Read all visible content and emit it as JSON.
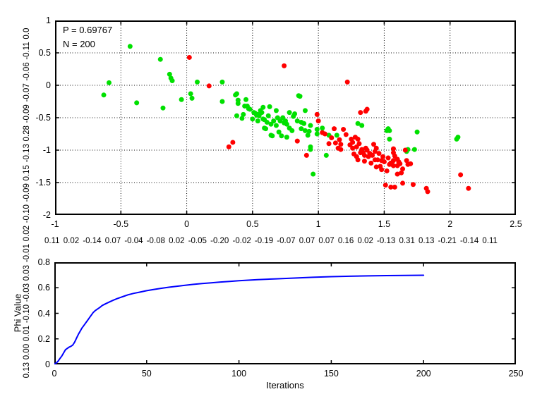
{
  "figure": {
    "background": "#ffffff",
    "left_number_strip": "0.13 0.00 0.01 -0.10 -0.03 0.03 -0.01 0.02 -0.10 -0.09 0.15 -0.13 0.28 -0.09 -0.07 -0.06 -0.11 0.0",
    "bottom_number_strip": "0.11 0.02 -0.14 0.07 -0.04 -0.08 0.02 -0.05 -0.20 -0.02 -0.19 -0.07 0.07 0.07 0.16 0.02 -0.13 0.31 0.13 -0.21 -0.14 0.11"
  },
  "chart_data": [
    {
      "type": "scatter",
      "annotation": [
        "P = 0.69767",
        "N = 200"
      ],
      "xlim": [
        -1,
        2.5
      ],
      "ylim": [
        -2,
        1
      ],
      "xticks": [
        -1,
        -0.5,
        0,
        0.5,
        1,
        1.5,
        2,
        2.5
      ],
      "yticks": [
        1,
        0.5,
        0,
        -0.5,
        -1,
        -1.5,
        -2
      ],
      "grid": true,
      "legend_position": "none",
      "series": [
        {
          "name": "green-class",
          "color": "#00e000",
          "points": [
            [
              -0.43,
              0.6
            ],
            [
              -0.2,
              0.4
            ],
            [
              -0.59,
              0.04
            ],
            [
              -0.63,
              -0.15
            ],
            [
              -0.13,
              0.17
            ],
            [
              -0.12,
              0.11
            ],
            [
              -0.11,
              0.07
            ],
            [
              0.08,
              0.05
            ],
            [
              0.27,
              0.05
            ],
            [
              -0.38,
              -0.27
            ],
            [
              -0.18,
              -0.35
            ],
            [
              -0.04,
              -0.22
            ],
            [
              0.03,
              -0.13
            ],
            [
              0.04,
              -0.2
            ],
            [
              0.38,
              -0.13
            ],
            [
              0.27,
              -0.25
            ],
            [
              0.39,
              -0.23
            ],
            [
              0.85,
              -0.16
            ],
            [
              0.86,
              -0.17
            ],
            [
              0.37,
              -0.15
            ],
            [
              0.39,
              -0.28
            ],
            [
              0.45,
              -0.22
            ],
            [
              0.44,
              -0.32
            ],
            [
              0.38,
              -0.47
            ],
            [
              0.42,
              -0.51
            ],
            [
              0.47,
              -0.36
            ],
            [
              0.51,
              -0.42
            ],
            [
              0.54,
              -0.45
            ],
            [
              0.58,
              -0.34
            ],
            [
              0.57,
              -0.42
            ],
            [
              0.63,
              -0.33
            ],
            [
              0.62,
              -0.47
            ],
            [
              0.59,
              -0.53
            ],
            [
              0.68,
              -0.39
            ],
            [
              0.69,
              -0.5
            ],
            [
              0.66,
              -0.55
            ],
            [
              0.73,
              -0.5
            ],
            [
              0.75,
              -0.55
            ],
            [
              0.78,
              -0.42
            ],
            [
              0.81,
              -0.48
            ],
            [
              0.84,
              -0.55
            ],
            [
              0.9,
              -0.39
            ],
            [
              0.89,
              -0.59
            ],
            [
              0.94,
              -0.62
            ],
            [
              0.46,
              -0.32
            ],
            [
              0.48,
              -0.37
            ],
            [
              0.43,
              -0.45
            ],
            [
              0.53,
              -0.46
            ],
            [
              0.56,
              -0.39
            ],
            [
              0.52,
              -0.43
            ],
            [
              0.55,
              -0.47
            ],
            [
              0.5,
              -0.52
            ],
            [
              0.54,
              -0.55
            ],
            [
              0.61,
              -0.57
            ],
            [
              0.58,
              -0.52
            ],
            [
              0.64,
              -0.6
            ],
            [
              0.68,
              -0.62
            ],
            [
              0.71,
              -0.55
            ],
            [
              0.74,
              -0.58
            ],
            [
              0.76,
              -0.6
            ],
            [
              0.82,
              -0.44
            ],
            [
              0.87,
              -0.57
            ],
            [
              0.6,
              -0.67
            ],
            [
              0.65,
              -0.78
            ],
            [
              0.7,
              -0.72
            ],
            [
              0.76,
              -0.8
            ],
            [
              0.8,
              -0.7
            ],
            [
              0.87,
              -0.67
            ],
            [
              0.93,
              -0.71
            ],
            [
              0.99,
              -0.68
            ],
            [
              1.03,
              -0.66
            ],
            [
              0.78,
              -0.66
            ],
            [
              0.72,
              -0.78
            ],
            [
              0.64,
              -0.77
            ],
            [
              0.59,
              -0.66
            ],
            [
              0.9,
              -0.7
            ],
            [
              0.99,
              -0.75
            ],
            [
              0.92,
              -0.77
            ],
            [
              0.94,
              -0.99
            ],
            [
              0.94,
              -0.95
            ],
            [
              1.06,
              -1.08
            ],
            [
              0.96,
              -1.37
            ],
            [
              1.08,
              -0.77
            ],
            [
              1.14,
              -0.77
            ],
            [
              1.3,
              -0.59
            ],
            [
              1.33,
              -0.62
            ],
            [
              1.52,
              -0.7
            ],
            [
              1.54,
              -0.7
            ],
            [
              1.54,
              -0.83
            ],
            [
              1.53,
              -0.67
            ],
            [
              1.67,
              -1.02
            ],
            [
              1.73,
              -0.99
            ],
            [
              1.68,
              -0.99
            ],
            [
              1.75,
              -0.72
            ],
            [
              2.05,
              -0.83
            ],
            [
              2.06,
              -0.8
            ]
          ]
        },
        {
          "name": "red-class",
          "color": "#ff0000",
          "points": [
            [
              0.02,
              0.43
            ],
            [
              0.74,
              0.3
            ],
            [
              1.22,
              0.05
            ],
            [
              0.17,
              -0.01
            ],
            [
              0.32,
              -0.95
            ],
            [
              0.35,
              -0.88
            ],
            [
              0.99,
              -0.45
            ],
            [
              1.0,
              -0.55
            ],
            [
              1.03,
              -0.73
            ],
            [
              1.36,
              -0.4
            ],
            [
              1.37,
              -0.37
            ],
            [
              1.32,
              -0.42
            ],
            [
              1.12,
              -0.67
            ],
            [
              1.05,
              -0.75
            ],
            [
              1.1,
              -0.81
            ],
            [
              1.08,
              -0.9
            ],
            [
              1.15,
              -0.97
            ],
            [
              1.17,
              -0.91
            ],
            [
              1.19,
              -0.68
            ],
            [
              1.21,
              -0.76
            ],
            [
              1.25,
              -0.83
            ],
            [
              1.28,
              -0.8
            ],
            [
              1.26,
              -0.97
            ],
            [
              1.29,
              -0.95
            ],
            [
              1.24,
              -0.92
            ],
            [
              1.31,
              -0.9
            ],
            [
              1.34,
              -1.04
            ],
            [
              1.36,
              -0.97
            ],
            [
              1.39,
              -1.05
            ],
            [
              1.43,
              -1.02
            ],
            [
              1.45,
              -1.15
            ],
            [
              1.5,
              -1.18
            ],
            [
              0.84,
              -0.86
            ],
            [
              0.91,
              -1.08
            ],
            [
              1.13,
              -0.89
            ],
            [
              1.16,
              -0.84
            ],
            [
              1.26,
              -0.88
            ],
            [
              1.3,
              -0.83
            ],
            [
              1.17,
              -0.99
            ],
            [
              1.33,
              -0.99
            ],
            [
              1.32,
              -1.04
            ],
            [
              1.35,
              -1.08
            ],
            [
              1.29,
              -1.1
            ],
            [
              1.37,
              -1.0
            ],
            [
              1.42,
              -0.91
            ],
            [
              1.43,
              -1.15
            ],
            [
              1.48,
              -1.16
            ],
            [
              1.52,
              -1.32
            ],
            [
              1.56,
              -1.22
            ],
            [
              1.57,
              -1.16
            ],
            [
              1.6,
              -1.24
            ],
            [
              1.6,
              -1.37
            ],
            [
              1.62,
              -1.21
            ],
            [
              1.64,
              -1.29
            ],
            [
              1.66,
              -1.0
            ],
            [
              1.68,
              -1.22
            ],
            [
              1.7,
              -1.21
            ],
            [
              1.51,
              -1.54
            ],
            [
              1.55,
              -1.57
            ],
            [
              1.58,
              -1.57
            ],
            [
              1.64,
              -1.51
            ],
            [
              1.72,
              -1.53
            ],
            [
              1.82,
              -1.59
            ],
            [
              1.83,
              -1.64
            ],
            [
              2.08,
              -1.38
            ],
            [
              2.14,
              -1.59
            ],
            [
              1.57,
              -0.98
            ],
            [
              1.57,
              -1.04
            ],
            [
              1.6,
              -1.14
            ],
            [
              1.67,
              -1.16
            ],
            [
              1.55,
              -1.2
            ],
            [
              1.57,
              -1.24
            ],
            [
              1.38,
              -1.1
            ],
            [
              1.41,
              -1.08
            ],
            [
              1.44,
              -0.97
            ],
            [
              1.46,
              -1.05
            ],
            [
              1.47,
              -1.25
            ],
            [
              1.49,
              -1.1
            ],
            [
              1.53,
              -1.12
            ],
            [
              1.54,
              -1.22
            ],
            [
              1.58,
              -1.09
            ],
            [
              1.61,
              -1.18
            ],
            [
              1.63,
              -1.35
            ],
            [
              1.48,
              -1.3
            ],
            [
              1.44,
              -1.26
            ],
            [
              1.4,
              -1.2
            ],
            [
              1.35,
              -1.17
            ],
            [
              1.3,
              -1.15
            ],
            [
              1.27,
              -1.06
            ]
          ]
        }
      ]
    },
    {
      "type": "line",
      "xlabel": "Iterations",
      "ylabel": "Phi Value",
      "xlim": [
        0,
        250
      ],
      "ylim": [
        0,
        0.8
      ],
      "xticks": [
        0,
        50,
        100,
        150,
        200,
        250
      ],
      "yticks": [
        0,
        0.2,
        0.4,
        0.6,
        0.8
      ],
      "grid": false,
      "legend_position": "none",
      "series": [
        {
          "name": "phi-curve",
          "color": "#0000ff",
          "points": [
            [
              0,
              0.005
            ],
            [
              1,
              0.01
            ],
            [
              2,
              0.025
            ],
            [
              3,
              0.045
            ],
            [
              4,
              0.065
            ],
            [
              5,
              0.09
            ],
            [
              6,
              0.115
            ],
            [
              7,
              0.125
            ],
            [
              8,
              0.135
            ],
            [
              9,
              0.142
            ],
            [
              10,
              0.152
            ],
            [
              11,
              0.175
            ],
            [
              12,
              0.205
            ],
            [
              13,
              0.235
            ],
            [
              14,
              0.26
            ],
            [
              15,
              0.285
            ],
            [
              16,
              0.305
            ],
            [
              17,
              0.325
            ],
            [
              18,
              0.345
            ],
            [
              19,
              0.365
            ],
            [
              20,
              0.385
            ],
            [
              21,
              0.405
            ],
            [
              22,
              0.42
            ],
            [
              23,
              0.43
            ],
            [
              24,
              0.44
            ],
            [
              25,
              0.45
            ],
            [
              26,
              0.462
            ],
            [
              28,
              0.476
            ],
            [
              30,
              0.49
            ],
            [
              32,
              0.503
            ],
            [
              34,
              0.515
            ],
            [
              36,
              0.525
            ],
            [
              38,
              0.535
            ],
            [
              40,
              0.545
            ],
            [
              43,
              0.556
            ],
            [
              46,
              0.565
            ],
            [
              50,
              0.577
            ],
            [
              54,
              0.587
            ],
            [
              58,
              0.596
            ],
            [
              62,
              0.604
            ],
            [
              66,
              0.611
            ],
            [
              70,
              0.618
            ],
            [
              75,
              0.626
            ],
            [
              80,
              0.633
            ],
            [
              85,
              0.639
            ],
            [
              90,
              0.645
            ],
            [
              95,
              0.65
            ],
            [
              100,
              0.655
            ],
            [
              110,
              0.663
            ],
            [
              120,
              0.67
            ],
            [
              130,
              0.676
            ],
            [
              140,
              0.682
            ],
            [
              150,
              0.687
            ],
            [
              160,
              0.69
            ],
            [
              170,
              0.693
            ],
            [
              180,
              0.695
            ],
            [
              190,
              0.697
            ],
            [
              200,
              0.698
            ]
          ]
        }
      ]
    }
  ]
}
